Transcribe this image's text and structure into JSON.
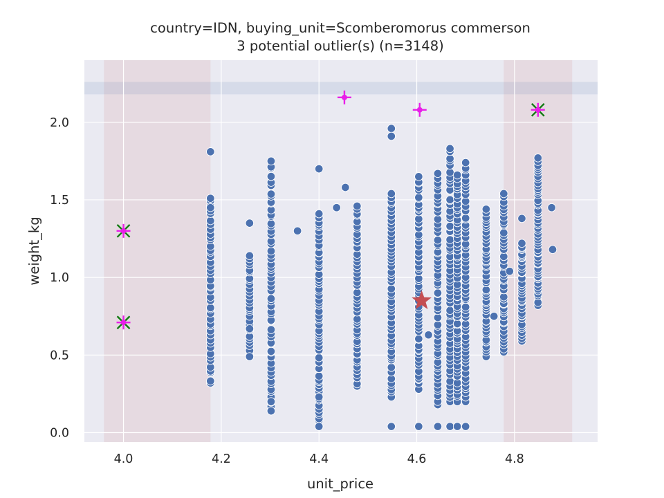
{
  "chart_data": {
    "type": "scatter",
    "title_line1": "country=IDN, buying_unit=Scomberomorus commerson",
    "title_line2": "3 potential outlier(s) (n=3148)",
    "xlabel": "unit_price",
    "ylabel": "weight_kg",
    "xlim": [
      3.92,
      4.97
    ],
    "ylim": [
      -0.06,
      2.4
    ],
    "xticks": [
      4.0,
      4.2,
      4.4,
      4.6,
      4.8
    ],
    "xtick_labels": [
      "4.0",
      "4.2",
      "4.4",
      "4.6",
      "4.8"
    ],
    "yticks": [
      0.0,
      0.5,
      1.0,
      1.5,
      2.0
    ],
    "ytick_labels": [
      "0.0",
      "0.5",
      "1.0",
      "1.5",
      "2.0"
    ],
    "grid": true,
    "colors": {
      "background": "#eaeaf2",
      "grid": "#ffffff",
      "points": "#4c72b0",
      "points_edge": "#ffffff",
      "shade_x": "#c44e52",
      "shade_y": "#4c72b0",
      "cross": "#e81fe8",
      "x_marker": "#107a10",
      "star": "#c44e52"
    },
    "shaded_x_ranges": [
      [
        3.96,
        4.178
      ],
      [
        4.778,
        4.918
      ]
    ],
    "shaded_y_range": [
      2.18,
      2.26
    ],
    "columns": [
      {
        "x": 4.178,
        "ymin": 0.32,
        "ymax": 1.51,
        "dense": 0.7,
        "extra": [
          1.81,
          1.45
        ]
      },
      {
        "x": 4.258,
        "ymin": 0.49,
        "ymax": 1.14,
        "dense": 0.4,
        "extra": [
          1.35,
          0.67,
          0.49
        ]
      },
      {
        "x": 4.302,
        "ymin": 0.14,
        "ymax": 1.75,
        "dense": 1.0,
        "extra": [
          0.2,
          0.14
        ]
      },
      {
        "x": 4.4,
        "ymin": 0.04,
        "ymax": 1.41,
        "dense": 1.0,
        "extra": [
          1.7,
          0.23,
          0.04
        ]
      },
      {
        "x": 4.478,
        "ymin": 0.3,
        "ymax": 1.46,
        "dense": 0.8,
        "extra": []
      },
      {
        "x": 4.548,
        "ymin": 0.23,
        "ymax": 1.54,
        "dense": 0.9,
        "extra": [
          1.96,
          1.91,
          0.04
        ]
      },
      {
        "x": 4.604,
        "ymin": 0.28,
        "ymax": 1.65,
        "dense": 1.0,
        "extra": [
          0.04
        ]
      },
      {
        "x": 4.643,
        "ymin": 0.18,
        "ymax": 1.67,
        "dense": 1.0,
        "extra": [
          0.04
        ]
      },
      {
        "x": 4.668,
        "ymin": 0.2,
        "ymax": 1.83,
        "dense": 1.0,
        "extra": [
          0.04
        ]
      },
      {
        "x": 4.683,
        "ymin": 0.2,
        "ymax": 1.66,
        "dense": 1.0,
        "extra": [
          0.04
        ]
      },
      {
        "x": 4.7,
        "ymin": 0.2,
        "ymax": 1.74,
        "dense": 1.0,
        "extra": [
          0.04
        ]
      },
      {
        "x": 4.742,
        "ymin": 0.49,
        "ymax": 1.44,
        "dense": 0.8,
        "extra": []
      },
      {
        "x": 4.778,
        "ymin": 0.52,
        "ymax": 1.54,
        "dense": 0.8,
        "extra": []
      },
      {
        "x": 4.815,
        "ymin": 0.59,
        "ymax": 1.22,
        "dense": 0.7,
        "extra": [
          1.38
        ]
      },
      {
        "x": 4.848,
        "ymin": 0.82,
        "ymax": 1.77,
        "dense": 1.0,
        "extra": []
      }
    ],
    "sparse_points": [
      {
        "x": 4.356,
        "y": 1.3
      },
      {
        "x": 4.436,
        "y": 1.45
      },
      {
        "x": 4.454,
        "y": 1.58
      },
      {
        "x": 4.624,
        "y": 0.63
      },
      {
        "x": 4.758,
        "y": 0.75
      },
      {
        "x": 4.79,
        "y": 1.04
      },
      {
        "x": 4.876,
        "y": 1.45
      },
      {
        "x": 4.878,
        "y": 1.18
      }
    ],
    "cross_points": [
      {
        "x": 4.452,
        "y": 2.16
      },
      {
        "x": 4.606,
        "y": 2.08
      },
      {
        "x": 4.0,
        "y": 1.3
      },
      {
        "x": 4.0,
        "y": 0.71
      },
      {
        "x": 4.848,
        "y": 2.08
      }
    ],
    "outliers_x_marker": [
      {
        "x": 4.0,
        "y": 1.3
      },
      {
        "x": 4.0,
        "y": 0.71
      },
      {
        "x": 4.848,
        "y": 2.08
      }
    ],
    "star": {
      "x": 4.61,
      "y": 0.85
    }
  }
}
